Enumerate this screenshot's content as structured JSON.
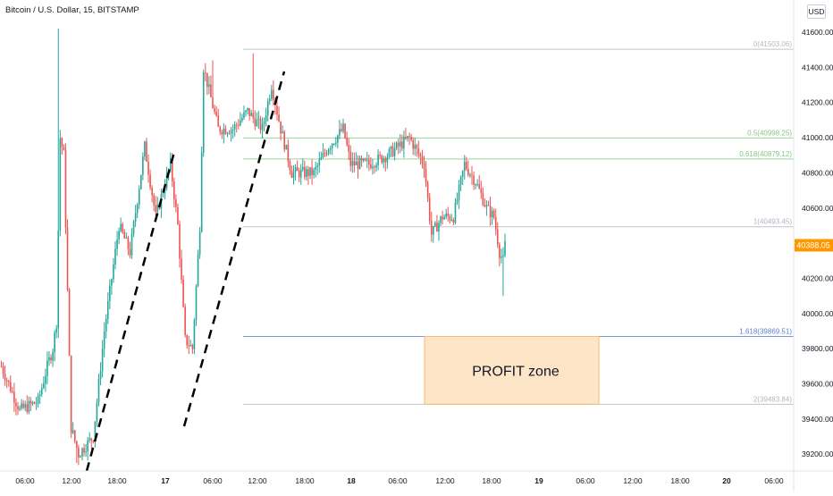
{
  "header": {
    "symbol_title": "Bitcoin / U.S. Dollar, 15, BITSTAMP",
    "currency_button": "USD"
  },
  "colors": {
    "up": "#26a69a",
    "down": "#ef5350",
    "price_tag_bg": "#ff9800",
    "profit_zone_fill": "#fde5c8",
    "profit_zone_border": "#f5b971",
    "fib_neutral": "#b2b5be",
    "fib_green": "#81c784",
    "fib_blue": "#5b7fcc"
  },
  "annotations": {
    "profit_zone_label": "PROFIT zone"
  },
  "chart_data": {
    "type": "candlestick",
    "title": "Bitcoin / U.S. Dollar, 15, BITSTAMP",
    "ylim": [
      39100,
      41700
    ],
    "y_ticks": [
      "41600.00",
      "41400.00",
      "41200.00",
      "41000.00",
      "40800.00",
      "40600.00",
      "40400.00",
      "40200.00",
      "40000.00",
      "39800.00",
      "39600.00",
      "39400.00",
      "39200.00"
    ],
    "x_ticks": [
      "06:00",
      "12:00",
      "18:00",
      "17",
      "06:00",
      "12:00",
      "18:00",
      "18",
      "06:00",
      "12:00",
      "18:00",
      "19",
      "06:00",
      "12:00",
      "18:00",
      "20",
      "06:00"
    ],
    "last_price": "40388.05",
    "fib_levels": [
      {
        "label": "0(41503.06)",
        "value": 41503.06,
        "tone": "neutral"
      },
      {
        "label": "0.5(40998.25)",
        "value": 40998.25,
        "tone": "green"
      },
      {
        "label": "0.618(40879.12)",
        "value": 40879.12,
        "tone": "green"
      },
      {
        "label": "1(40493.45)",
        "value": 40493.45,
        "tone": "neutral"
      },
      {
        "label": "1.618(39869.51)",
        "value": 39869.51,
        "tone": "blue"
      },
      {
        "label": "2(39483.84)",
        "value": 39483.84,
        "tone": "neutral"
      }
    ],
    "profit_zone": {
      "from": 39483.84,
      "to": 39869.51
    },
    "anchors": [
      {
        "t": 0,
        "p": 39700
      },
      {
        "t": 10,
        "p": 39450
      },
      {
        "t": 20,
        "p": 39500
      },
      {
        "t": 25,
        "p": 39700
      },
      {
        "t": 28,
        "p": 39800
      },
      {
        "t": 30,
        "p": 39950
      },
      {
        "t": 32,
        "p": 41000
      },
      {
        "t": 34,
        "p": 40900
      },
      {
        "t": 38,
        "p": 39350
      },
      {
        "t": 42,
        "p": 39200
      },
      {
        "t": 50,
        "p": 39300
      },
      {
        "t": 56,
        "p": 39900
      },
      {
        "t": 64,
        "p": 40500
      },
      {
        "t": 70,
        "p": 40350
      },
      {
        "t": 78,
        "p": 40950
      },
      {
        "t": 84,
        "p": 40550
      },
      {
        "t": 88,
        "p": 40700
      },
      {
        "t": 92,
        "p": 40850
      },
      {
        "t": 96,
        "p": 40500
      },
      {
        "t": 100,
        "p": 39850
      },
      {
        "t": 104,
        "p": 39800
      },
      {
        "t": 108,
        "p": 40500
      },
      {
        "t": 110,
        "p": 41400
      },
      {
        "t": 118,
        "p": 41050
      },
      {
        "t": 126,
        "p": 41050
      },
      {
        "t": 134,
        "p": 41150
      },
      {
        "t": 142,
        "p": 41050
      },
      {
        "t": 147,
        "p": 41300
      },
      {
        "t": 152,
        "p": 41050
      },
      {
        "t": 158,
        "p": 40800
      },
      {
        "t": 170,
        "p": 40800
      },
      {
        "t": 178,
        "p": 40950
      },
      {
        "t": 186,
        "p": 41050
      },
      {
        "t": 190,
        "p": 40850
      },
      {
        "t": 200,
        "p": 40850
      },
      {
        "t": 210,
        "p": 40900
      },
      {
        "t": 222,
        "p": 41000
      },
      {
        "t": 230,
        "p": 40850
      },
      {
        "t": 234,
        "p": 40450
      },
      {
        "t": 240,
        "p": 40550
      },
      {
        "t": 246,
        "p": 40550
      },
      {
        "t": 252,
        "p": 40850
      },
      {
        "t": 258,
        "p": 40750
      },
      {
        "t": 264,
        "p": 40600
      },
      {
        "t": 268,
        "p": 40550
      },
      {
        "t": 271,
        "p": 40350
      },
      {
        "t": 273,
        "p": 40300
      },
      {
        "t": 274,
        "p": 40390
      }
    ]
  }
}
